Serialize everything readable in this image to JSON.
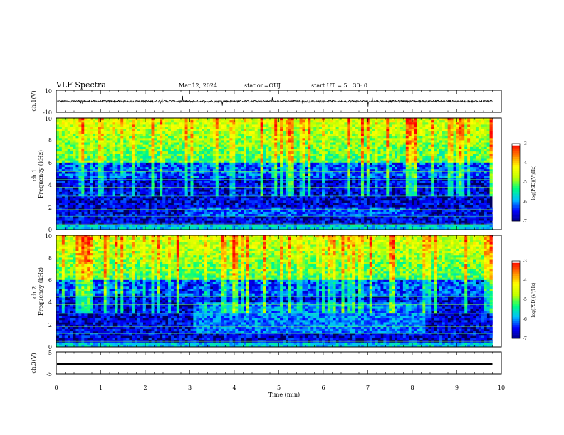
{
  "header": {
    "title": "VLF Spectra",
    "date": "Mar.12, 2024",
    "station": "station=OUJ",
    "start": "start  UT =   5 : 30: 0"
  },
  "chart_data": [
    {
      "type": "line",
      "name": "ch1-waveform",
      "ylabel": "ch.1(V)",
      "ylim": [
        -10,
        10
      ],
      "yticks": [
        "10",
        "-10"
      ],
      "x_range_min": [
        0,
        9.8
      ],
      "level": 0,
      "color": "#000000"
    },
    {
      "type": "heatmap",
      "name": "ch1-spectrogram",
      "ylabel": "ch.1\nFrequency (kHz)",
      "ylim": [
        0,
        10
      ],
      "yticks": [
        "0",
        "2",
        "4",
        "6",
        "8",
        "10"
      ],
      "x_range_min": [
        0,
        9.8
      ],
      "colorbar": {
        "label": "log(PSD)(V²/Hz)",
        "ticks": [
          "-3",
          "-4",
          "-5",
          "-6",
          "-7"
        ],
        "range": [
          -7,
          -3
        ]
      }
    },
    {
      "type": "heatmap",
      "name": "ch2-spectrogram",
      "ylabel": "ch.2\nFrequency (kHz)",
      "ylim": [
        0,
        10
      ],
      "yticks": [
        "0",
        "2",
        "4",
        "6",
        "8",
        "10"
      ],
      "x_range_min": [
        0,
        9.8
      ],
      "colorbar": {
        "label": "log(PSD)(V²/Hz)",
        "ticks": [
          "-3",
          "-4",
          "-5",
          "-6",
          "-7"
        ],
        "range": [
          -7,
          -3
        ]
      }
    },
    {
      "type": "line",
      "name": "ch3-waveform",
      "ylabel": "ch.3(V)",
      "ylim": [
        -5,
        5
      ],
      "yticks": [
        "5",
        "-5"
      ],
      "x_range_min": [
        0,
        9.8
      ],
      "level": -0.5,
      "color": "#000000"
    }
  ],
  "xaxis": {
    "label": "Time (min)",
    "ticks": [
      "0",
      "1",
      "2",
      "3",
      "4",
      "5",
      "6",
      "7",
      "8",
      "9",
      "10"
    ],
    "range": [
      0,
      10
    ]
  },
  "colors": {
    "colormap": [
      "#000080",
      "#0000ff",
      "#00c0ff",
      "#00ff80",
      "#c0ff00",
      "#ffff00",
      "#ff8000",
      "#ff0000",
      "#ffffff"
    ]
  }
}
